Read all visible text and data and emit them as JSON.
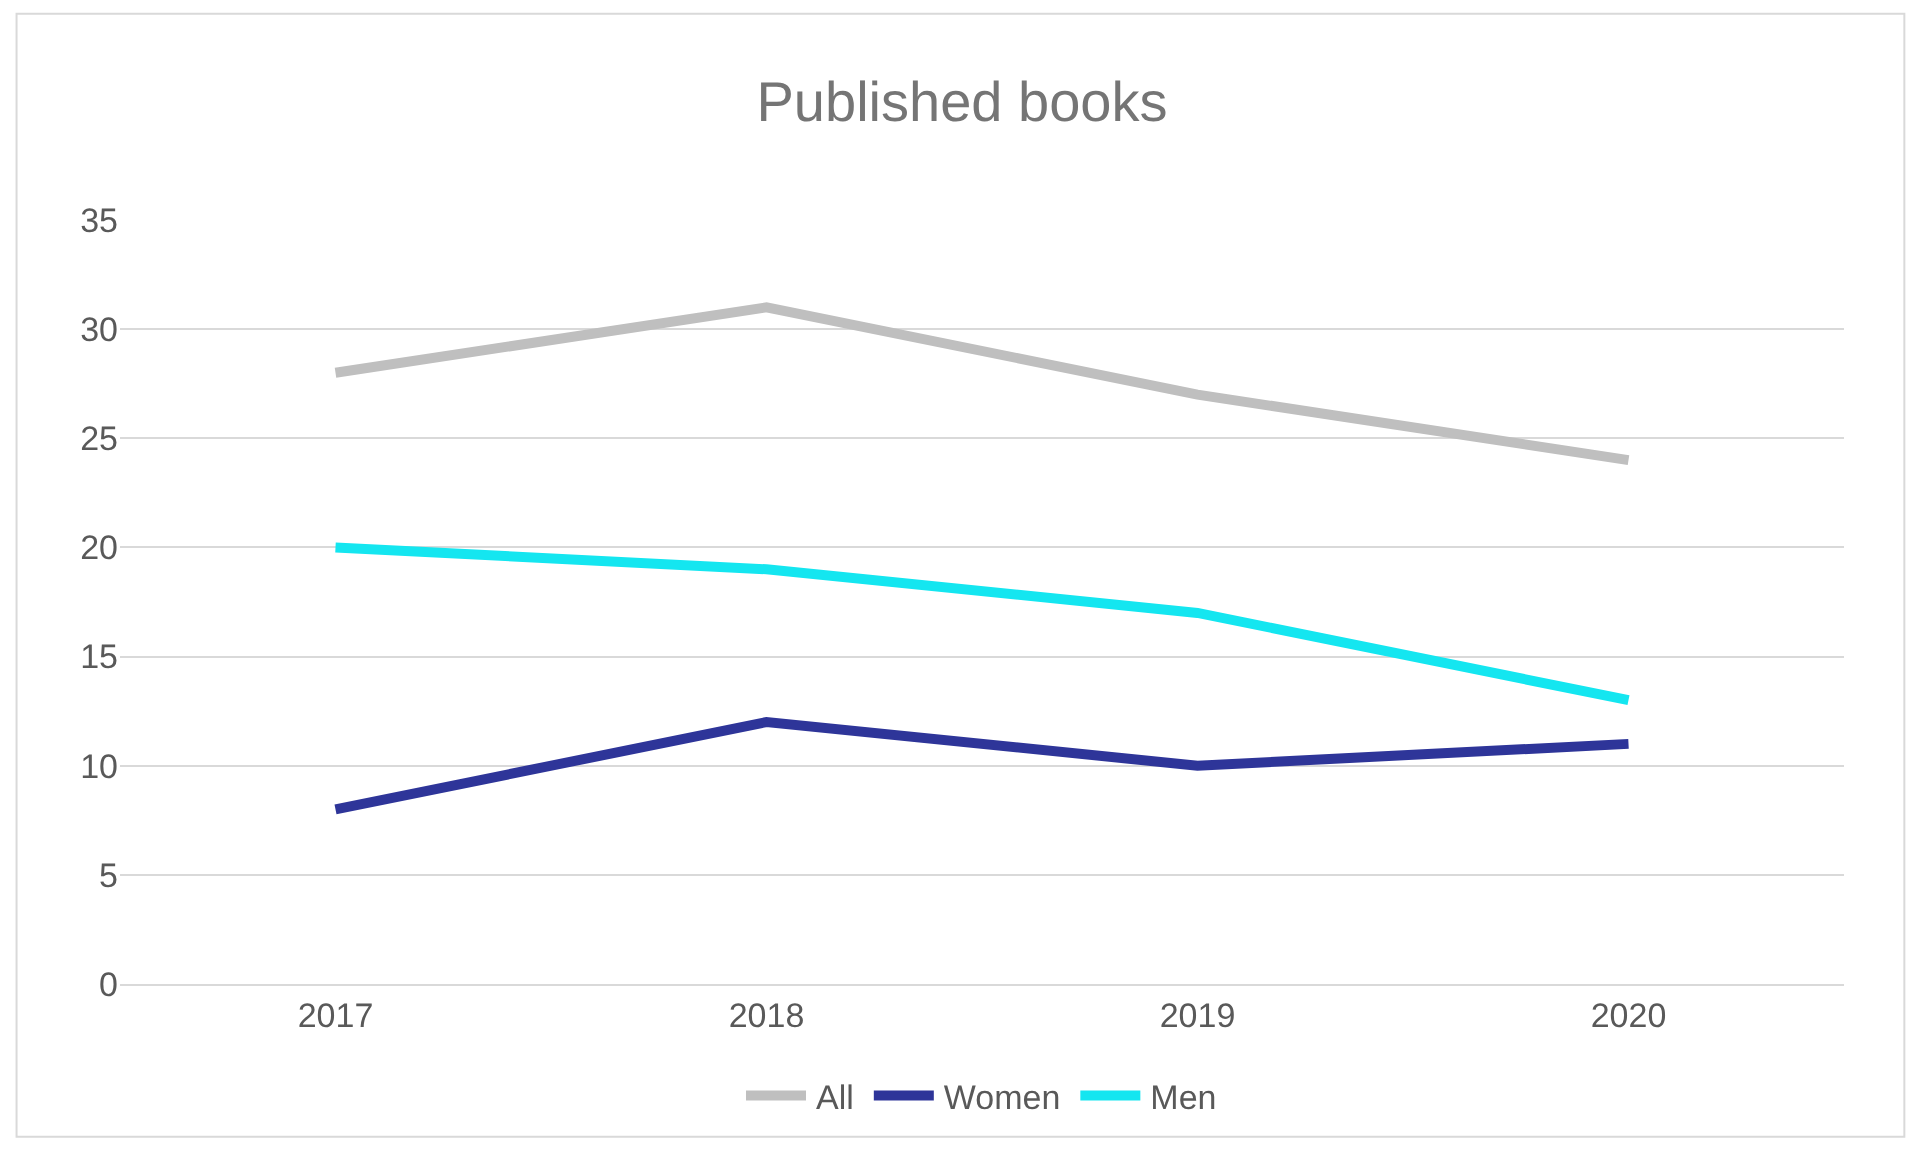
{
  "chart_data": {
    "type": "line",
    "title": "Published books",
    "categories": [
      "2017",
      "2018",
      "2019",
      "2020"
    ],
    "series": [
      {
        "name": "All",
        "color": "#bfbfbf",
        "values": [
          28,
          31,
          27,
          24
        ]
      },
      {
        "name": "Women",
        "color": "#2e3599",
        "values": [
          8,
          12,
          10,
          11
        ]
      },
      {
        "name": "Men",
        "color": "#14e6f0",
        "values": [
          20,
          19,
          17,
          13
        ]
      }
    ],
    "ylim": [
      0,
      35
    ],
    "yticks": [
      0,
      5,
      10,
      15,
      20,
      25,
      30,
      35
    ],
    "grid": "y",
    "legend": "bottom",
    "marker": "none",
    "line_style": "solid"
  }
}
